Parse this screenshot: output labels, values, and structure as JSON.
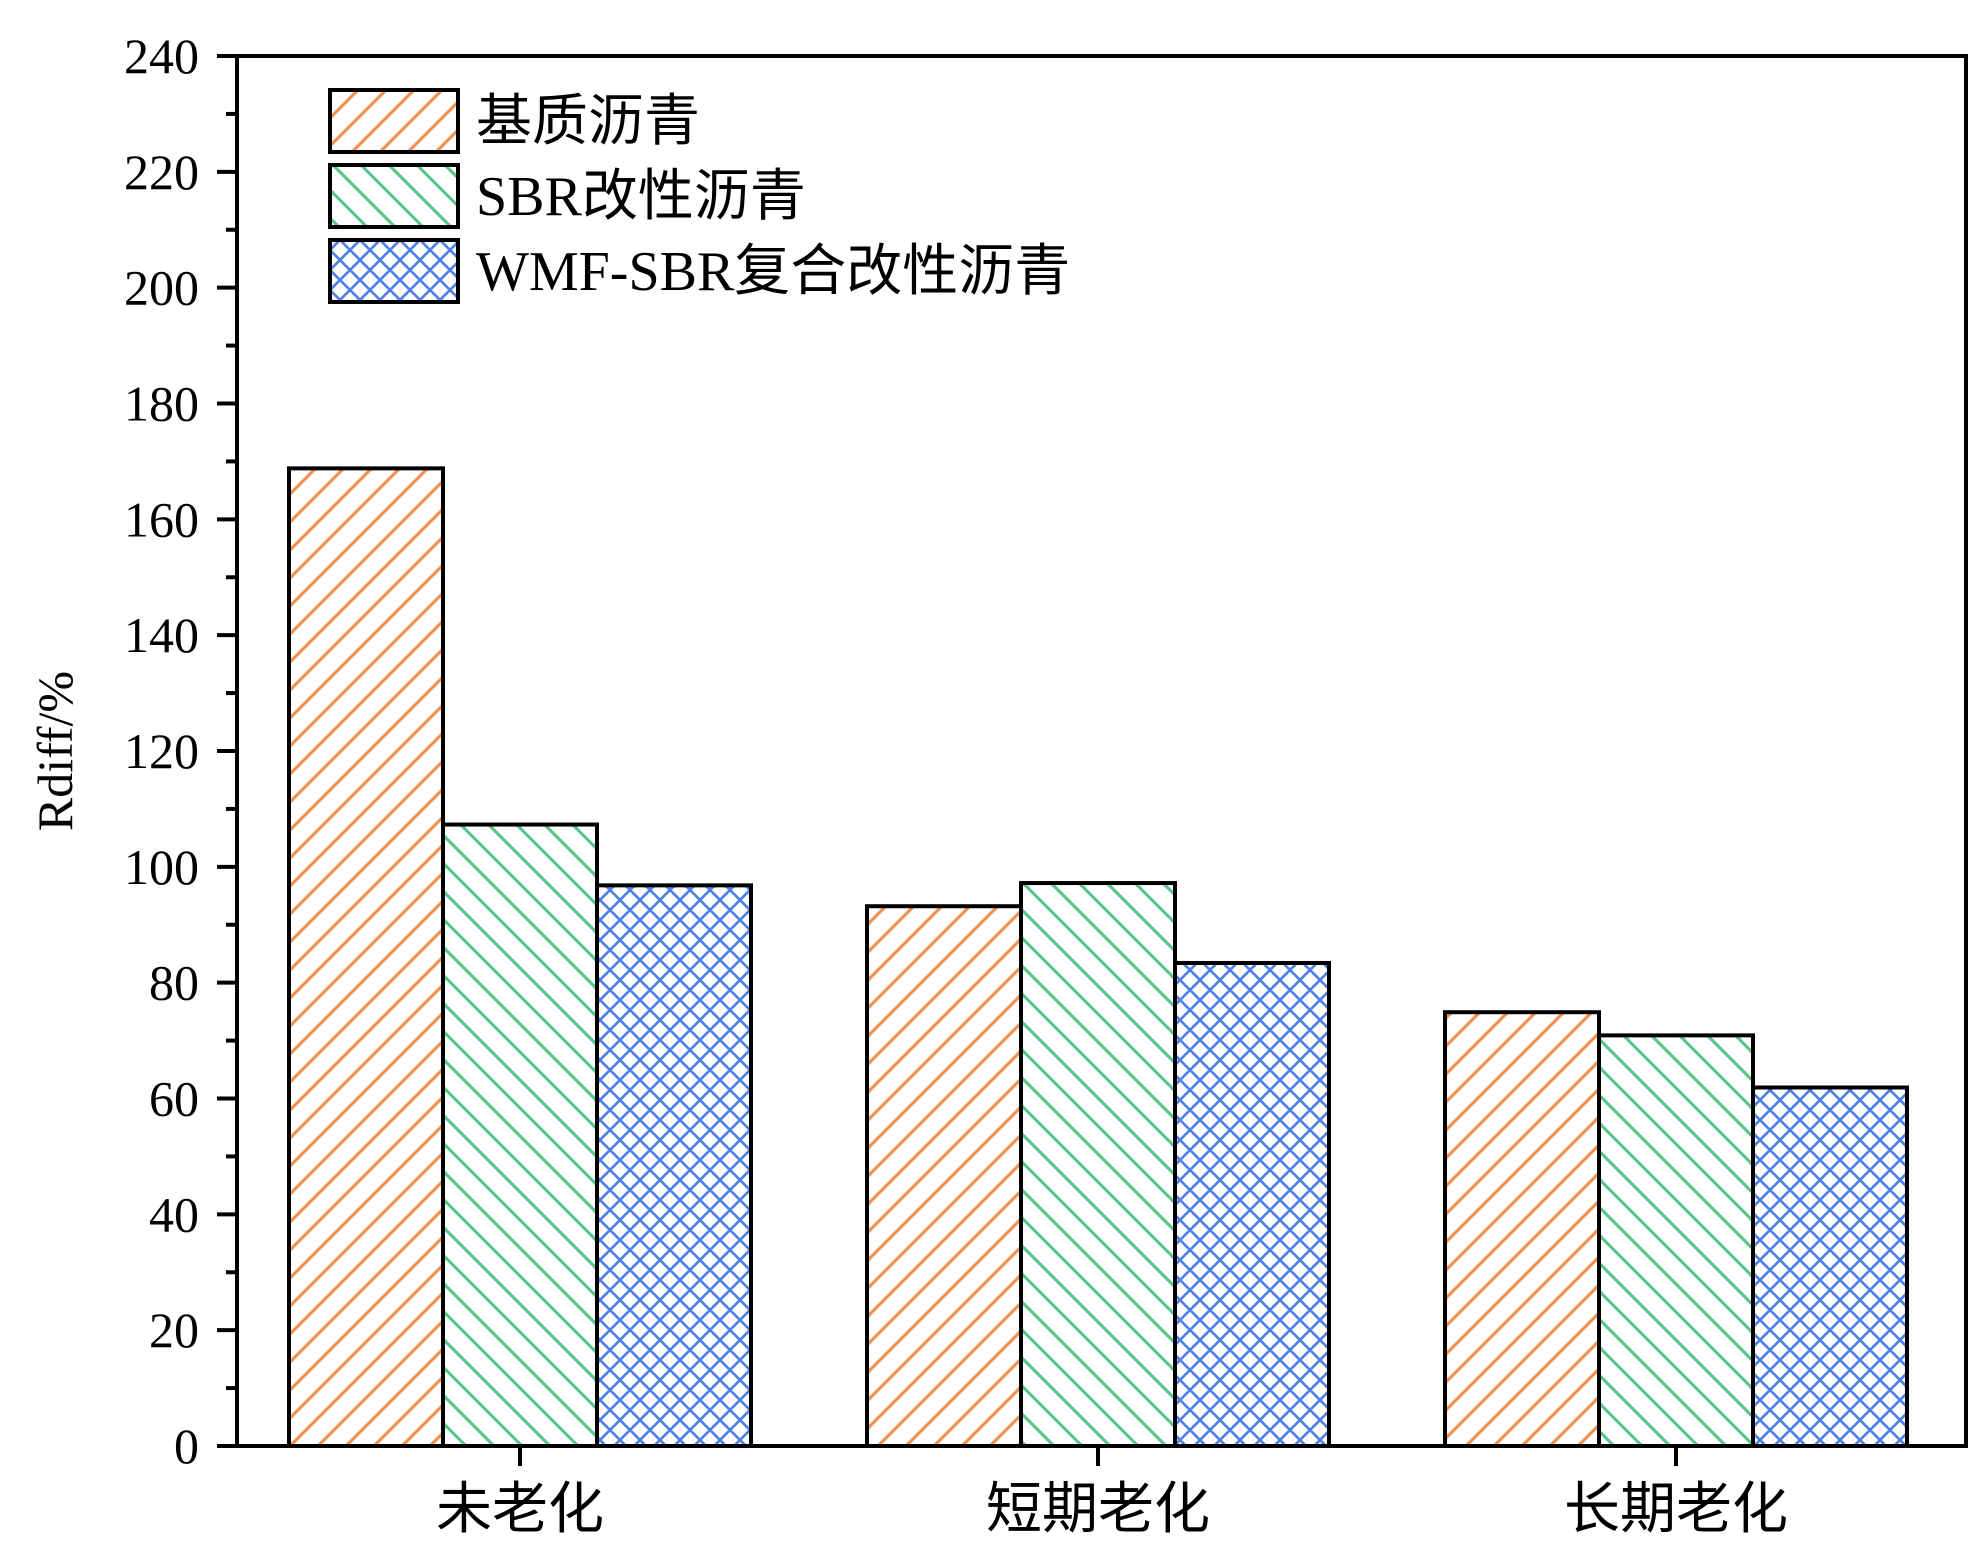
{
  "chart_data": {
    "type": "bar",
    "title": "",
    "xlabel": "",
    "ylabel": "Rdiff/%",
    "ylim": [
      0,
      240
    ],
    "yticks": [
      0,
      20,
      40,
      60,
      80,
      100,
      120,
      140,
      160,
      180,
      200,
      220,
      240
    ],
    "grid": false,
    "legend_position": "top-left",
    "categories": [
      "未老化",
      "短期老化",
      "长期老化"
    ],
    "series": [
      {
        "name": "基质沥青",
        "values": [
          168.8,
          93.2,
          74.9
        ],
        "color": "#f0924e",
        "pattern": "diagonal-up"
      },
      {
        "name": "SBR改性沥青",
        "values": [
          107.3,
          97.2,
          70.9
        ],
        "color": "#5cc78a",
        "pattern": "diagonal-down"
      },
      {
        "name": "WMF-SBR复合改性沥青",
        "values": [
          96.8,
          83.4,
          61.9
        ],
        "color": "#4d80e0",
        "pattern": "crosshatch"
      }
    ]
  }
}
